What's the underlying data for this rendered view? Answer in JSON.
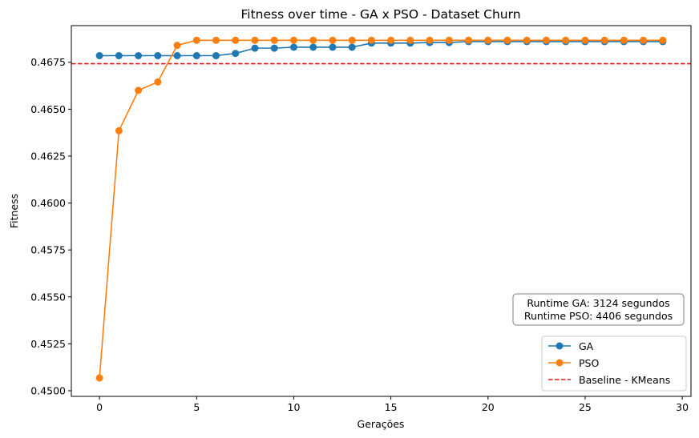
{
  "chart_data": {
    "type": "line",
    "title": "Fitness over time - GA x PSO - Dataset Churn",
    "xlabel": "Gerações",
    "ylabel": "Fitness",
    "xlim": [
      -1.45,
      30.45
    ],
    "ylim": [
      0.4497,
      0.46945
    ],
    "xticks": [
      0,
      5,
      10,
      15,
      20,
      25,
      30
    ],
    "yticks": [
      0.45,
      0.4525,
      0.455,
      0.4575,
      0.46,
      0.4625,
      0.465,
      0.4675
    ],
    "ytick_labels": [
      "0.4500",
      "0.4525",
      "0.4550",
      "0.4575",
      "0.4600",
      "0.4625",
      "0.4650",
      "0.4675"
    ],
    "x": [
      0,
      1,
      2,
      3,
      4,
      5,
      6,
      7,
      8,
      9,
      10,
      11,
      12,
      13,
      14,
      15,
      16,
      17,
      18,
      19,
      20,
      21,
      22,
      23,
      24,
      25,
      26,
      27,
      28,
      29
    ],
    "series": [
      {
        "name": "GA",
        "color": "#1f77b4",
        "marker": "circle",
        "values": [
          0.46785,
          0.46785,
          0.46785,
          0.46785,
          0.46785,
          0.46785,
          0.46785,
          0.46797,
          0.46825,
          0.46825,
          0.4683,
          0.4683,
          0.4683,
          0.4683,
          0.46852,
          0.46852,
          0.46852,
          0.46855,
          0.46855,
          0.4686,
          0.4686,
          0.4686,
          0.4686,
          0.4686,
          0.4686,
          0.4686,
          0.4686,
          0.4686,
          0.4686,
          0.4686
        ]
      },
      {
        "name": "PSO",
        "color": "#ff7f0e",
        "marker": "circle",
        "values": [
          0.45068,
          0.46385,
          0.466,
          0.46645,
          0.4684,
          0.46867,
          0.46867,
          0.46867,
          0.46867,
          0.46867,
          0.46867,
          0.46867,
          0.46867,
          0.46867,
          0.46867,
          0.46867,
          0.46867,
          0.46867,
          0.46867,
          0.46867,
          0.46867,
          0.46867,
          0.46867,
          0.46867,
          0.46867,
          0.46867,
          0.46867,
          0.46867,
          0.46867,
          0.46867
        ]
      }
    ],
    "baseline": {
      "name": "Baseline - KMeans",
      "value": 0.46742,
      "color": "#e31a1c",
      "style": "dashed"
    },
    "annotation": {
      "lines": [
        "Runtime GA: 3124 segundos",
        "Runtime PSO: 4406 segundos"
      ]
    },
    "legend": {
      "position": "lower-right",
      "entries": [
        "GA",
        "PSO",
        "Baseline - KMeans"
      ]
    },
    "grid": false
  }
}
